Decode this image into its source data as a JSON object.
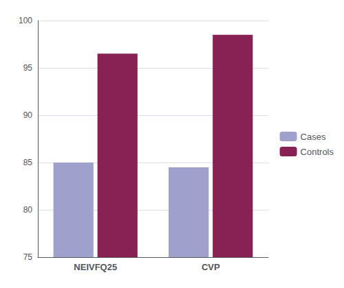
{
  "chart_data": {
    "type": "bar",
    "categories": [
      "NEIVFQ25",
      "CVP"
    ],
    "series": [
      {
        "name": "Cases",
        "color": "#a0a0cc",
        "values": [
          85.0,
          84.5
        ]
      },
      {
        "name": "Controls",
        "color": "#882255",
        "values": [
          96.5,
          98.5
        ]
      }
    ],
    "ylim": [
      75,
      100
    ],
    "yticks": [
      75,
      80,
      85,
      90,
      95,
      100
    ],
    "grid": true,
    "legend": "right"
  }
}
